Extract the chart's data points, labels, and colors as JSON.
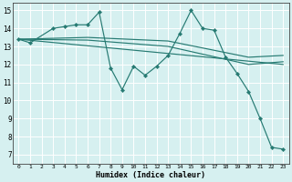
{
  "xlabel": "Humidex (Indice chaleur)",
  "xlim": [
    -0.5,
    23.5
  ],
  "ylim": [
    6.5,
    15.4
  ],
  "yticks": [
    7,
    8,
    9,
    10,
    11,
    12,
    13,
    14,
    15
  ],
  "xticks": [
    0,
    1,
    2,
    3,
    4,
    5,
    6,
    7,
    8,
    9,
    10,
    11,
    12,
    13,
    14,
    15,
    16,
    17,
    18,
    19,
    20,
    21,
    22,
    23
  ],
  "bg_color": "#d6f0f0",
  "line_color": "#267a72",
  "grid_color": "#ffffff",
  "main_line": {
    "x": [
      0,
      1,
      3,
      4,
      5,
      6,
      7,
      8,
      9,
      10,
      11,
      12,
      13,
      14,
      15,
      16,
      17,
      18,
      19,
      20,
      21,
      22,
      23
    ],
    "y": [
      13.4,
      13.2,
      14.0,
      14.1,
      14.2,
      14.2,
      14.9,
      11.8,
      10.6,
      11.9,
      11.4,
      11.9,
      12.5,
      13.7,
      15.0,
      14.0,
      13.9,
      12.4,
      11.5,
      10.5,
      9.0,
      7.4,
      7.3
    ]
  },
  "smooth_lines": [
    {
      "x": [
        0,
        6,
        13,
        20,
        23
      ],
      "y": [
        13.4,
        13.5,
        13.3,
        12.4,
        12.5
      ]
    },
    {
      "x": [
        0,
        6,
        13,
        20,
        23
      ],
      "y": [
        13.4,
        13.35,
        13.0,
        12.0,
        12.15
      ]
    },
    {
      "x": [
        0,
        23
      ],
      "y": [
        13.4,
        12.0
      ]
    }
  ],
  "figsize": [
    3.2,
    2.0
  ],
  "dpi": 100
}
